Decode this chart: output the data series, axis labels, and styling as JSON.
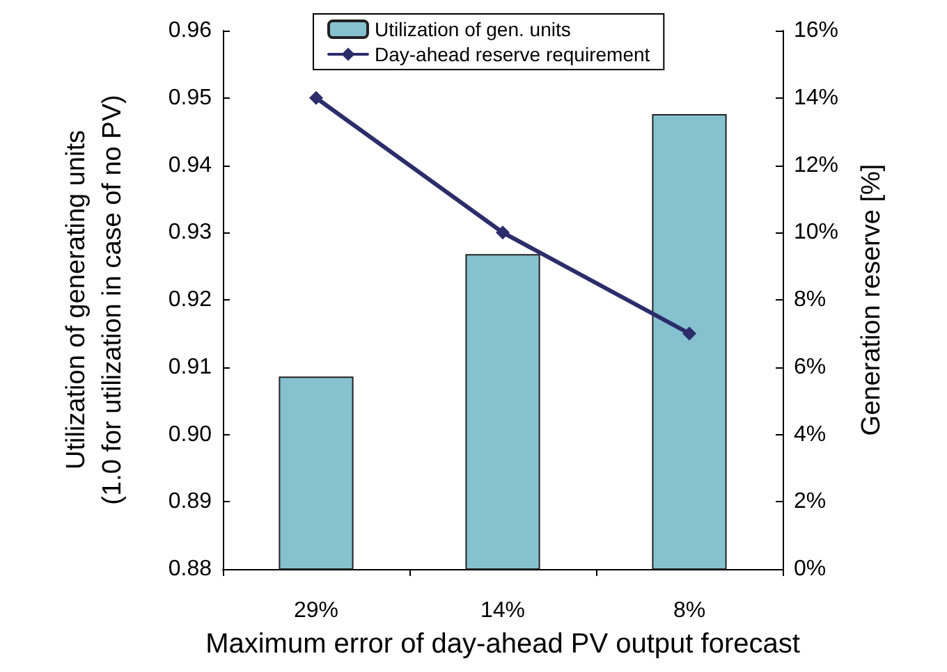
{
  "chart_data": {
    "type": "bar",
    "xlabel": "Maximum error of day-ahead PV output forecast",
    "ylabel": "Utilization of generating units\n(1.0 for utilization in case of no PV)",
    "y2label": "Generation reserve [%]",
    "categories": [
      "29%",
      "14%",
      "8%"
    ],
    "series": [
      {
        "name": "Utilization of gen. units",
        "color": "#86c1cf",
        "values": [
          0.9086,
          0.9268,
          0.9476
        ]
      },
      {
        "name": "Day-ahead reserve requirement",
        "type": "line",
        "axis": "y2",
        "color": "#2b2d6b",
        "values": [
          14,
          10,
          7
        ]
      }
    ],
    "ylim": [
      0.88,
      0.96
    ],
    "yticks": [
      {
        "value": 0.88,
        "label": "0.88"
      },
      {
        "value": 0.89,
        "label": "0.89"
      },
      {
        "value": 0.9,
        "label": "0.90"
      },
      {
        "value": 0.91,
        "label": "0.91"
      },
      {
        "value": 0.92,
        "label": "0.92"
      },
      {
        "value": 0.93,
        "label": "0.93"
      },
      {
        "value": 0.94,
        "label": "0.94"
      },
      {
        "value": 0.95,
        "label": "0.95"
      },
      {
        "value": 0.96,
        "label": "0.96"
      }
    ],
    "y2lim": [
      0,
      16
    ],
    "y2ticks": [
      {
        "value": 0,
        "label": "0%"
      },
      {
        "value": 2,
        "label": "2%"
      },
      {
        "value": 4,
        "label": "4%"
      },
      {
        "value": 6,
        "label": "6%"
      },
      {
        "value": 8,
        "label": "8%"
      },
      {
        "value": 10,
        "label": "10%"
      },
      {
        "value": 12,
        "label": "12%"
      },
      {
        "value": 14,
        "label": "14%"
      },
      {
        "value": 16,
        "label": "16%"
      }
    ],
    "grid": false,
    "legend": "top",
    "marker": "diamond",
    "line_style": "solid"
  }
}
